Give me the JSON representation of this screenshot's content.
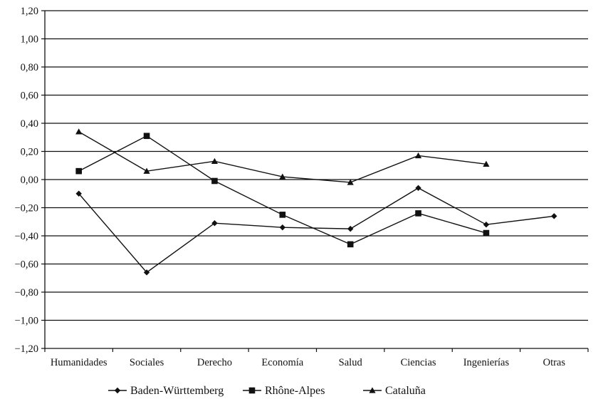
{
  "chart_data": {
    "type": "line",
    "title": "",
    "xlabel": "",
    "ylabel": "",
    "categories": [
      "Humanidades",
      "Sociales",
      "Derecho",
      "Economía",
      "Salud",
      "Ciencias",
      "Ingenierías",
      "Otras"
    ],
    "ylim": [
      -1.2,
      1.2
    ],
    "yticks": [
      "1,20",
      "1,00",
      "0,80",
      "0,60",
      "0,40",
      "0,20",
      "0,00",
      "−0,20",
      "−0,40",
      "−0,60",
      "−0,80",
      "−1,00",
      "−1,20"
    ],
    "ytick_values": [
      1.2,
      1.0,
      0.8,
      0.6,
      0.4,
      0.2,
      0.0,
      -0.2,
      -0.4,
      -0.6,
      -0.8,
      -1.0,
      -1.2
    ],
    "grid": true,
    "legend_position": "bottom",
    "series": [
      {
        "name": "Baden-Württemberg",
        "marker": "diamond",
        "values": [
          -0.1,
          -0.66,
          -0.31,
          -0.34,
          -0.35,
          -0.06,
          -0.32,
          -0.26
        ]
      },
      {
        "name": "Rhône-Alpes",
        "marker": "square",
        "values": [
          0.06,
          0.31,
          -0.01,
          -0.25,
          -0.46,
          -0.24,
          -0.38,
          null
        ]
      },
      {
        "name": "Cataluña",
        "marker": "triangle",
        "values": [
          0.34,
          0.06,
          0.13,
          0.02,
          -0.02,
          0.17,
          0.11,
          null
        ]
      }
    ]
  }
}
